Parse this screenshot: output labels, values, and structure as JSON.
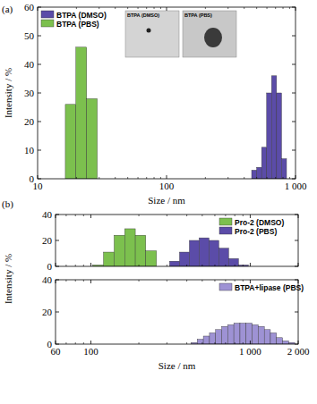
{
  "chart_data": [
    {
      "type": "histogram",
      "label": "(a)",
      "xlabel": "Size / nm",
      "ylabel": "Intensity / %",
      "log": "x",
      "xlim": [
        10,
        1000
      ],
      "xticks": [
        10,
        100,
        {
          "value": 1000,
          "label": "1 000"
        }
      ],
      "ylim": [
        0,
        60
      ],
      "yticks": [
        0,
        10,
        20,
        30,
        40,
        50,
        60
      ],
      "legend": "upper left",
      "annotations": [
        "BTPA (DMSO)",
        "BTPA (PBS)"
      ],
      "series": [
        {
          "name": "BTPA (DMSO)",
          "color": "#5b4ca8",
          "bins": [
            457,
            500,
            546,
            597,
            652,
            713,
            779,
            852
          ],
          "values": [
            3,
            4,
            11,
            30,
            36,
            30,
            7
          ]
        },
        {
          "name": "BTPA (PBS)",
          "color": "#7cc04e",
          "bins": [
            16.4,
            19.8,
            24,
            29
          ],
          "values": [
            26,
            46,
            28
          ]
        }
      ]
    },
    {
      "type": "histogram",
      "label": "(b)",
      "ylabel": "Intensity / %",
      "log": "x",
      "xlim": [
        60,
        2000
      ],
      "xticks": [
        60,
        100,
        1000,
        2000
      ],
      "tick_labels": "y",
      "ylim": [
        0,
        40
      ],
      "yticks": [
        0,
        20,
        40
      ],
      "legend": "upper right",
      "series": [
        {
          "name": "Pro-2 (DMSO)",
          "color": "#7cc04e",
          "bins": [
            103,
            120,
            140,
            163,
            190,
            221,
            258
          ],
          "values": [
            1,
            11,
            24,
            29,
            24,
            12
          ]
        },
        {
          "name": "Pro-2 (PBS)",
          "color": "#5b4ca8",
          "bins": [
            312,
            360,
            415,
            478,
            551,
            635,
            732,
            844,
            973
          ],
          "values": [
            4,
            11,
            20,
            22,
            20,
            14,
            6,
            1
          ]
        }
      ]
    },
    {
      "type": "histogram",
      "xlabel": "Size / nm",
      "log": "x",
      "xlim": [
        60,
        2000
      ],
      "xticks": [
        60,
        100,
        {
          "value": 1000,
          "label": "1 000"
        },
        {
          "value": 2000,
          "label": "2 000"
        }
      ],
      "ylim": [
        0,
        40
      ],
      "yticks": [
        0,
        20,
        40
      ],
      "legend": "upper right",
      "series": [
        {
          "name": "BTPA+lipase (PBS)",
          "color": "#9e92d4",
          "bins": [
            426,
            465,
            508,
            555,
            606,
            662,
            723,
            789,
            862,
            941,
            1028,
            1122,
            1226,
            1338,
            1462,
            1596,
            1743,
            1903
          ],
          "values": [
            1,
            3,
            5,
            7,
            9,
            11,
            12,
            13,
            13,
            13,
            12,
            11,
            9,
            7,
            4,
            2,
            1
          ]
        }
      ]
    }
  ]
}
